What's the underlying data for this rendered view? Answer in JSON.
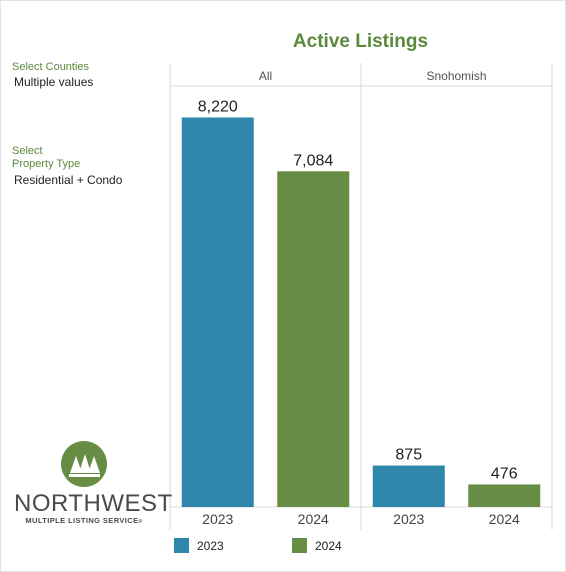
{
  "filters": {
    "counties": {
      "label": "Select Counties",
      "value": "Multiple values"
    },
    "property_type": {
      "label_line1": "Select",
      "label_line2": "Property Type",
      "value": "Residential + Condo"
    }
  },
  "logo": {
    "word": "NORTHWEST",
    "subtitle": "MULTIPLE LISTING SERVICE",
    "trademark": "®"
  },
  "colors": {
    "y2023": "#2e86ab",
    "y2024": "#678d45",
    "title": "#5b8a3c"
  },
  "chart_data": {
    "type": "bar",
    "title": "Active Listings",
    "panels": [
      "All",
      "Snohomish"
    ],
    "categories": [
      "2023",
      "2024"
    ],
    "series": [
      {
        "panel": "All",
        "values": [
          8220,
          7084
        ]
      },
      {
        "panel": "Snohomish",
        "values": [
          875,
          476
        ]
      }
    ],
    "data_labels": {
      "All": [
        "8,220",
        "7,084"
      ],
      "Snohomish": [
        "875",
        "476"
      ]
    },
    "legend": {
      "position": "bottom",
      "entries": [
        "2023",
        "2024"
      ]
    },
    "ylim": [
      0,
      8800
    ],
    "grid": false
  }
}
